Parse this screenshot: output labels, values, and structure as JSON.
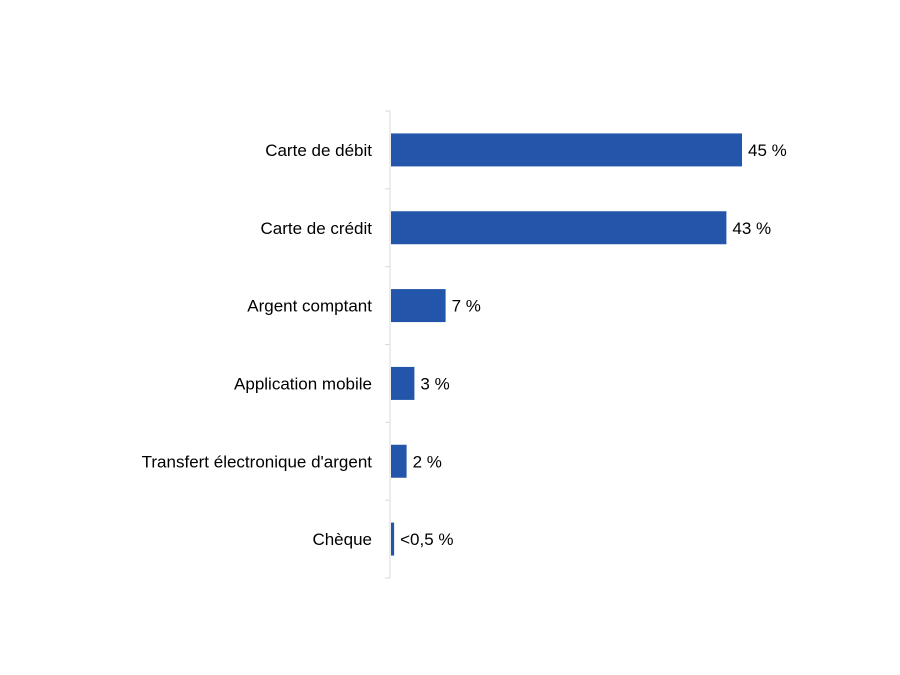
{
  "chart_data": {
    "type": "bar",
    "orientation": "horizontal",
    "categories": [
      "Carte de débit",
      "Carte de crédit",
      "Argent comptant",
      "Application mobile",
      "Transfert électronique d'argent",
      "Chèque"
    ],
    "values": [
      45,
      43,
      7,
      3,
      2,
      0.4
    ],
    "data_labels": [
      "45 %",
      "43 %",
      "7 %",
      "3 %",
      "2 %",
      "<0,5 %"
    ],
    "title": "",
    "xlabel": "",
    "ylabel": "",
    "xlim": [
      0,
      45
    ],
    "grid": false,
    "legend": "none",
    "bar_color": "#2356AA",
    "axis_color": "#D9D9D9"
  }
}
